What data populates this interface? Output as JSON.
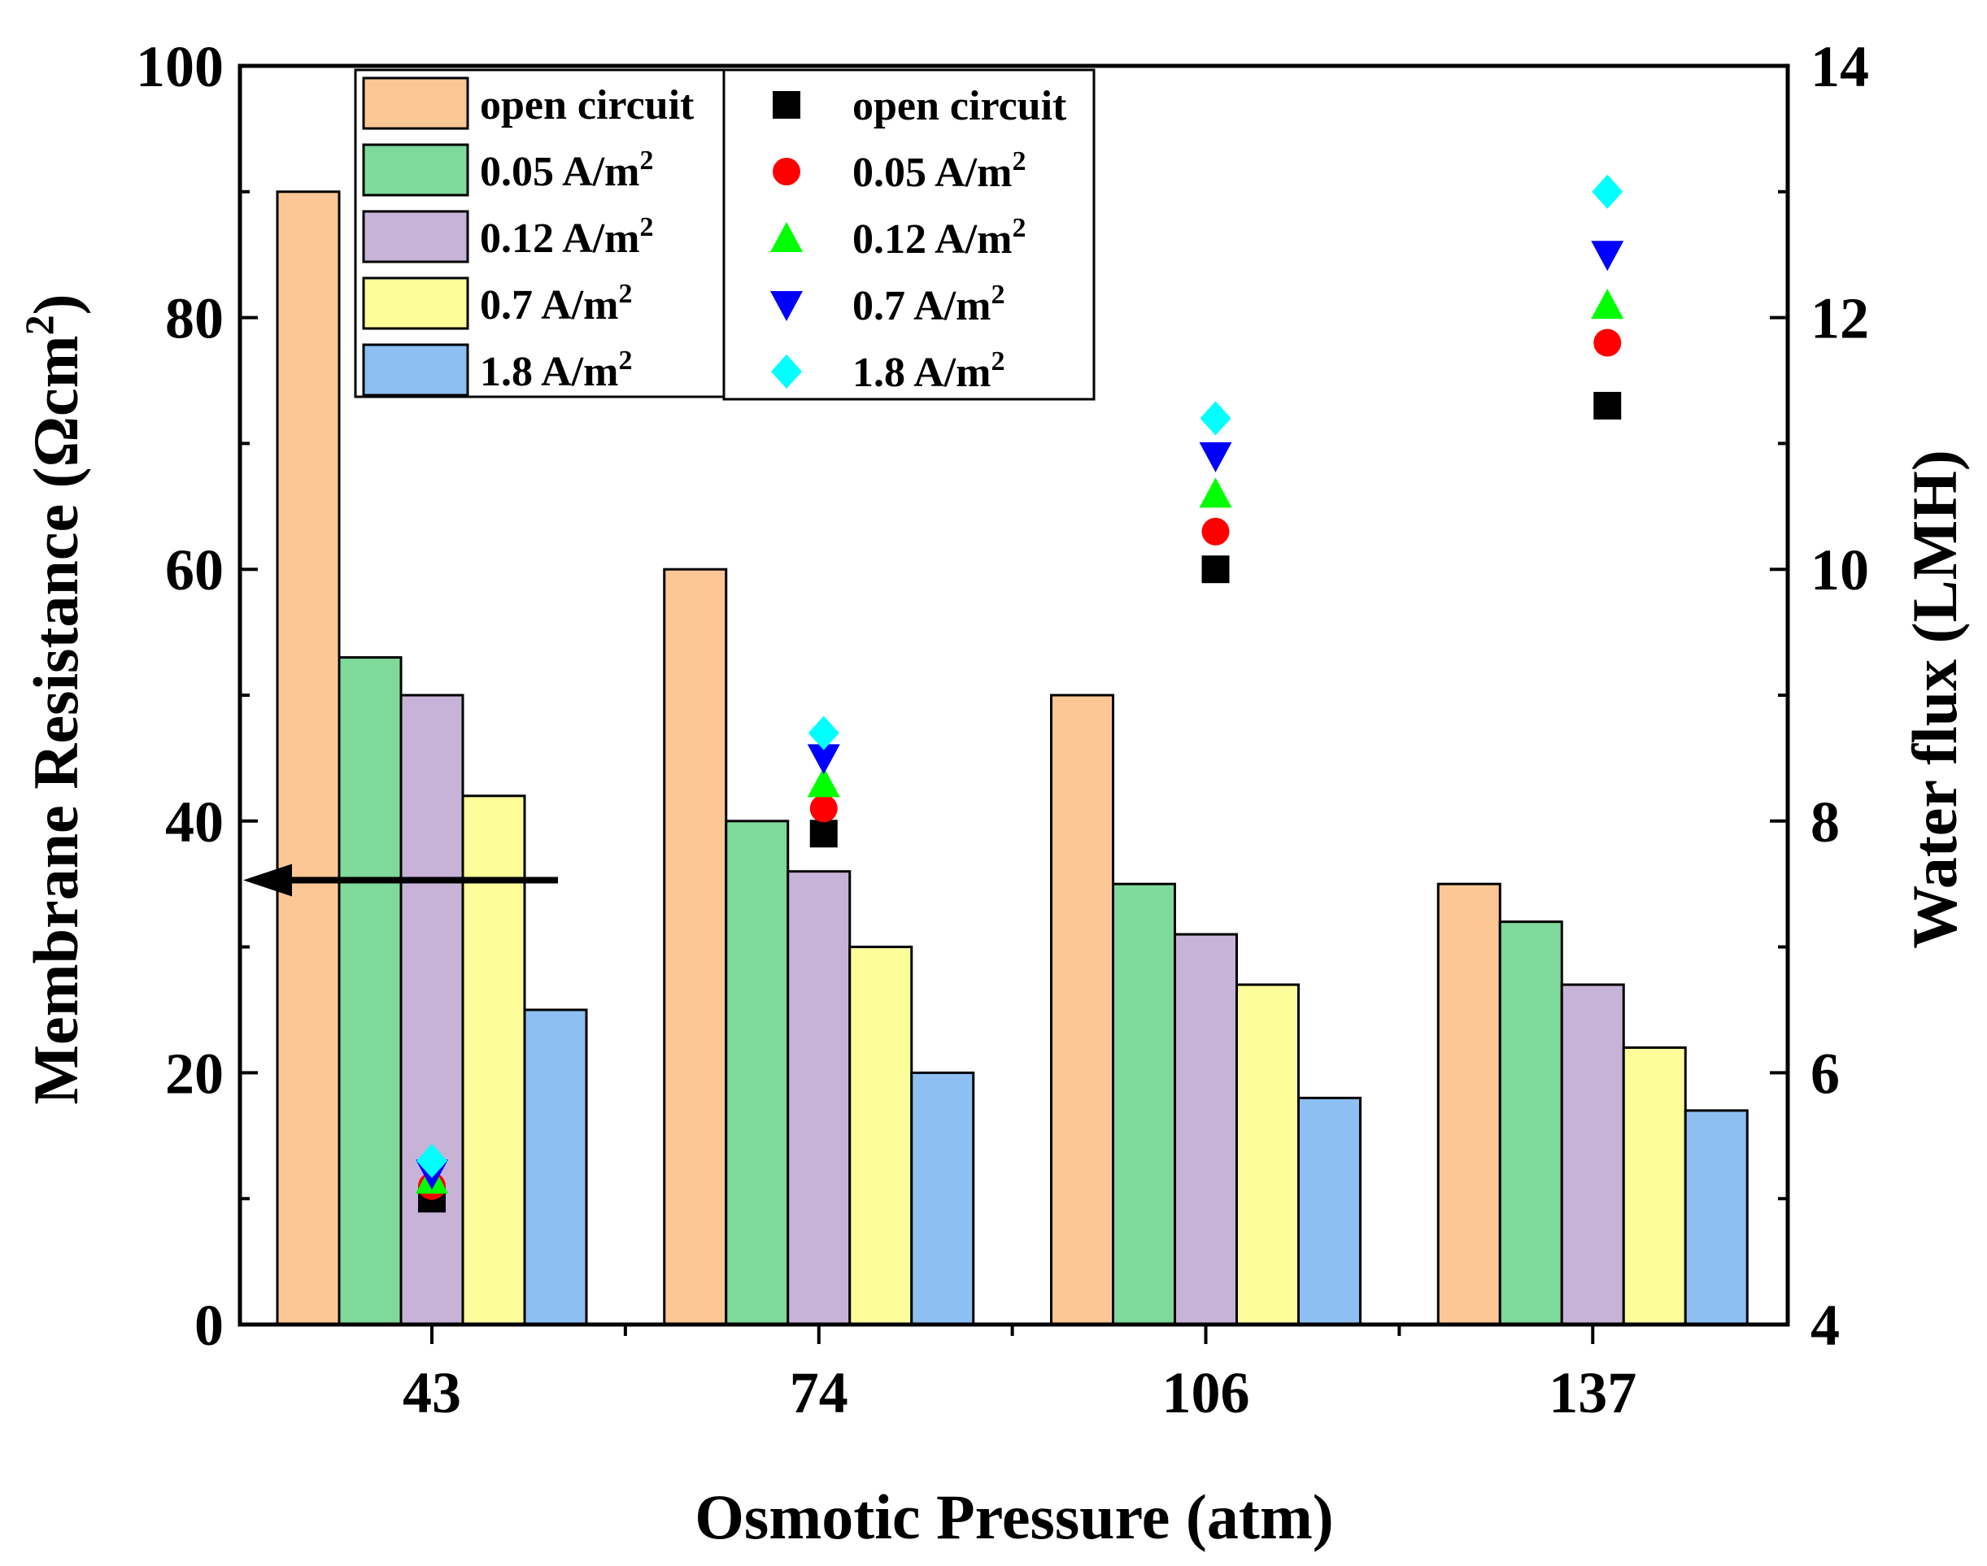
{
  "chart_data": {
    "type": "bar",
    "categories": [
      "43",
      "74",
      "106",
      "137"
    ],
    "xlabel": "Osmotic Pressure (atm)",
    "ylabel": "Membrane Resistance (Ωcm",
    "ylabel_sup": "2",
    "ylabel_close": ")",
    "y2label": "Water flux (LMH)",
    "ylim": [
      0,
      100
    ],
    "y2lim": [
      4,
      14
    ],
    "yticks": [
      "0",
      "20",
      "40",
      "60",
      "80",
      "100"
    ],
    "y2ticks": [
      "4",
      "6",
      "8",
      "10",
      "12",
      "14"
    ],
    "bar_series": [
      {
        "name": "open circuit",
        "unit": "",
        "color": "#FDC795",
        "values": [
          90,
          60,
          50,
          35
        ]
      },
      {
        "name": "0.05 A/m",
        "unit": "2",
        "color": "#7FD99A",
        "values": [
          53,
          40,
          35,
          32
        ]
      },
      {
        "name": "0.12 A/m",
        "unit": "2",
        "color": "#C8B3D8",
        "values": [
          50,
          36,
          31,
          27
        ]
      },
      {
        "name": "0.7 A/m",
        "unit": "2",
        "color": "#FDFD9A",
        "values": [
          42,
          30,
          27,
          22
        ]
      },
      {
        "name": "1.8 A/m",
        "unit": "2",
        "color": "#8EBFF2",
        "values": [
          25,
          20,
          18,
          17
        ]
      }
    ],
    "scatter_series": [
      {
        "name": "open circuit",
        "unit": "",
        "color": "#000000",
        "marker": "square",
        "values": [
          5.0,
          7.9,
          10.0,
          11.3
        ]
      },
      {
        "name": "0.05 A/m",
        "unit": "2",
        "color": "#FF0000",
        "marker": "circle",
        "values": [
          5.1,
          8.1,
          10.3,
          11.8
        ]
      },
      {
        "name": "0.12 A/m",
        "unit": "2",
        "color": "#00FF00",
        "marker": "triangle-up",
        "values": [
          5.15,
          8.3,
          10.6,
          12.1
        ]
      },
      {
        "name": "0.7 A/m",
        "unit": "2",
        "color": "#0000FF",
        "marker": "triangle-down",
        "values": [
          5.2,
          8.5,
          10.9,
          12.5
        ]
      },
      {
        "name": "1.8 A/m",
        "unit": "2",
        "color": "#00FFFF",
        "marker": "diamond",
        "values": [
          5.3,
          8.7,
          11.2,
          13.0
        ]
      }
    ],
    "annotation": {
      "type": "arrow",
      "direction": "left",
      "points_to": "left axis",
      "y_value": 35.3
    },
    "grid": false
  }
}
